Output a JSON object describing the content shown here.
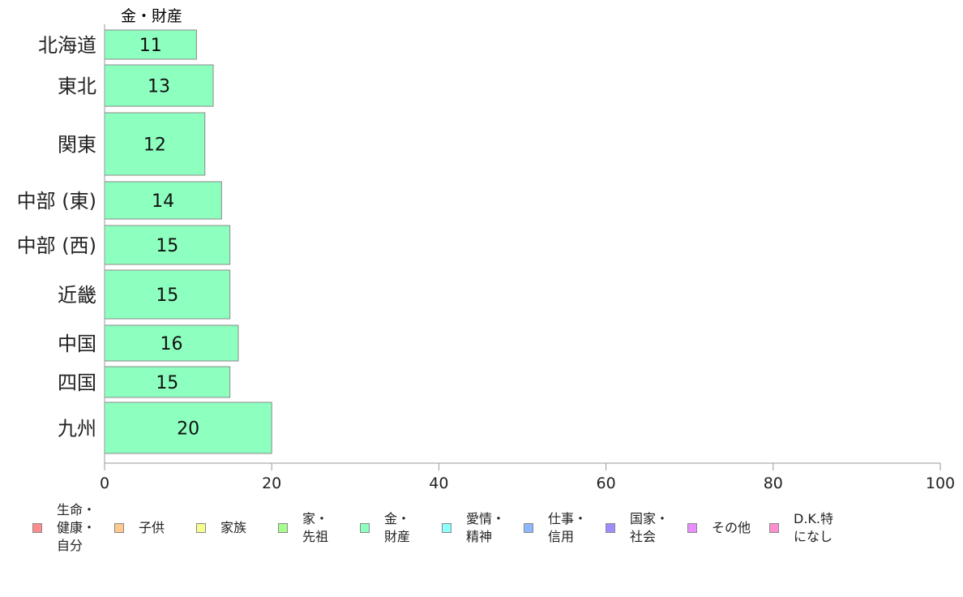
{
  "chart_data": {
    "type": "bar",
    "orientation": "horizontal",
    "series_header": "金・財産",
    "categories": [
      "北海道",
      "東北",
      "関東",
      "中部 (東)",
      "中部 (西)",
      "近畿",
      "中国",
      "四国",
      "九州"
    ],
    "series": [
      {
        "name": "金・財産",
        "color": "#8dffbe",
        "values": [
          11,
          13,
          12,
          14,
          15,
          15,
          16,
          15,
          20
        ]
      }
    ],
    "xlim": [
      0,
      100
    ],
    "x_ticks": [
      "0",
      "20",
      "40",
      "60",
      "80",
      "100"
    ],
    "grid": false,
    "legend_position": "bottom"
  },
  "legend": [
    {
      "label": "生命・\n健康・\n自分",
      "color": "#ff8c8c"
    },
    {
      "label": "子供",
      "color": "#ffc98d"
    },
    {
      "label": "家族",
      "color": "#f4ff8d"
    },
    {
      "label": "家・\n先祖",
      "color": "#a6ff8d"
    },
    {
      "label": "金・\n財産",
      "color": "#8dffbe"
    },
    {
      "label": "愛情・\n精神",
      "color": "#8dffff"
    },
    {
      "label": "仕事・\n信用",
      "color": "#8db8ff"
    },
    {
      "label": "国家・\n社会",
      "color": "#9e8dff"
    },
    {
      "label": "その他",
      "color": "#ea8dff"
    },
    {
      "label": "D.K.特\nになし",
      "color": "#ff8dcf"
    }
  ]
}
